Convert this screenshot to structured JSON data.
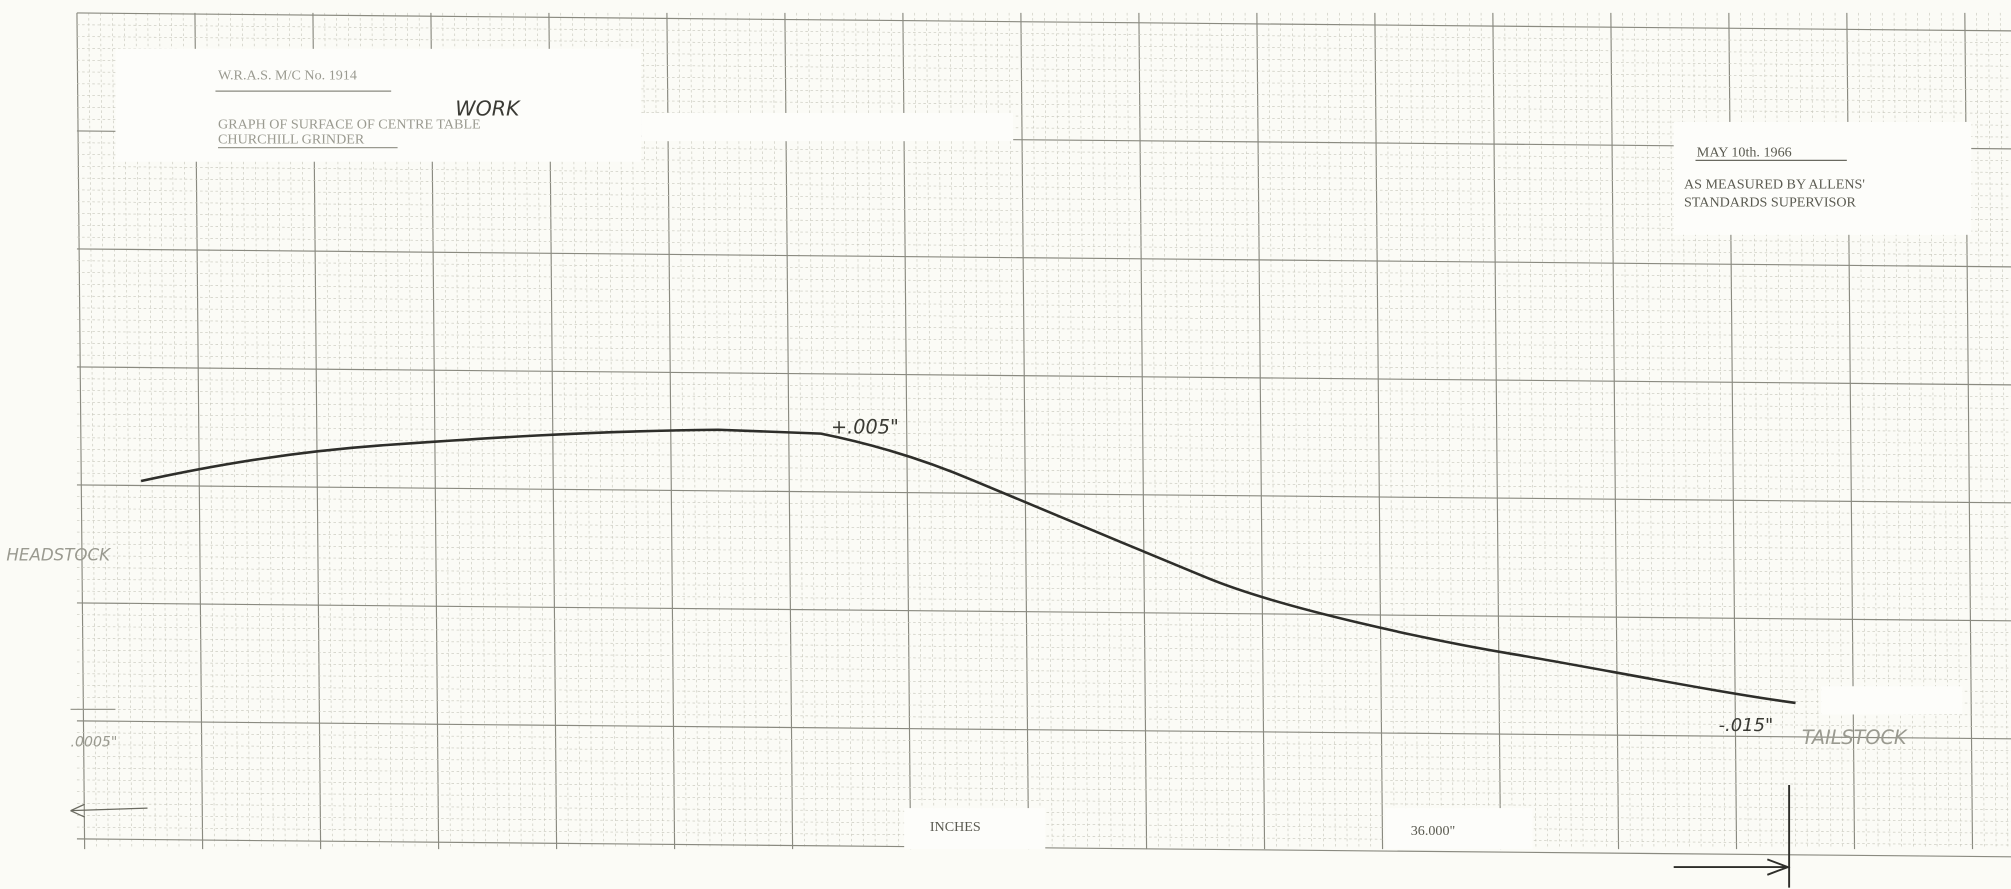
{
  "header": {
    "machine": "W.R.A.S. M/C No. 1914",
    "note": "WORK",
    "title": "GRAPH OF SURFACE OF CENTRE TABLE",
    "subtitle": "CHURCHILL GRINDER"
  },
  "stamp": {
    "date": "MAY 10th. 1966",
    "line1": "AS MEASURED BY ALLENS'",
    "line2": "STANDARDS SUPERVISOR"
  },
  "annotations": {
    "peak": "+.005\"",
    "left_end": "HEADSTOCK",
    "scale": ".0005\"",
    "low": "-.015\"",
    "right_end": "TAILSTOCK"
  },
  "footer": {
    "axis": "INCHES",
    "length": "36.000\""
  }
}
